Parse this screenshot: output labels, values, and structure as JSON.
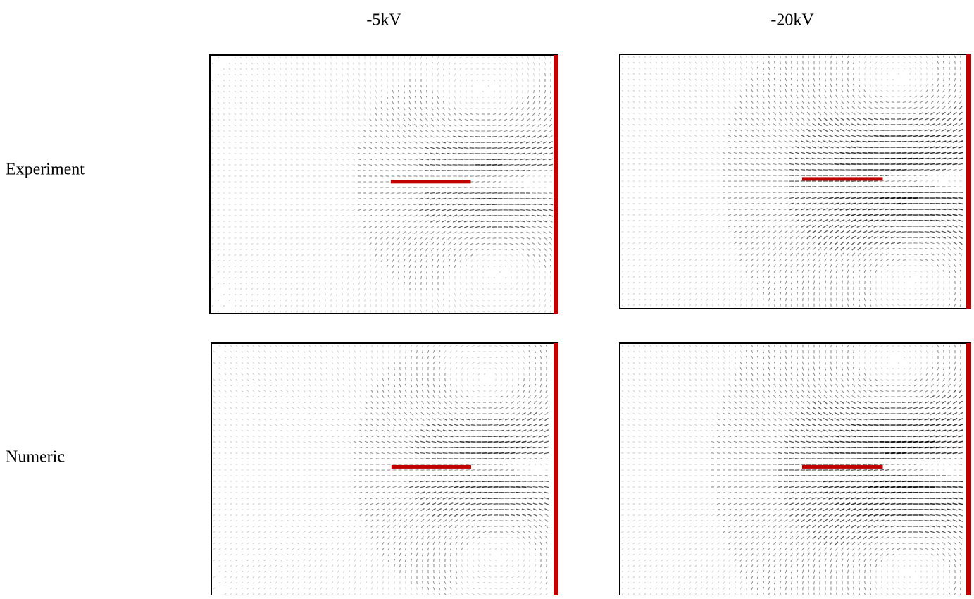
{
  "columns": [
    "-5kV",
    "-20kV"
  ],
  "rows": [
    "Experiment",
    "Numeric"
  ]
}
